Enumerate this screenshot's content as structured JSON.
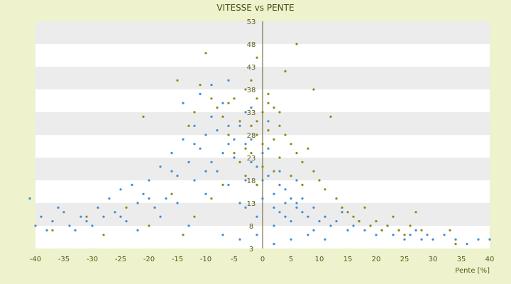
{
  "chart_data": {
    "type": "scatter",
    "title": "VITESSE vs PENTE",
    "xlabel": "Pente [%]",
    "ylabel": "",
    "xlim": [
      -40,
      40
    ],
    "ylim": [
      3,
      53
    ],
    "xticks": [
      -40,
      -35,
      -30,
      -25,
      -20,
      -15,
      -10,
      -5,
      0,
      5,
      10,
      15,
      20,
      25,
      30,
      35,
      40
    ],
    "yticks": [
      3,
      8,
      13,
      18,
      23,
      28,
      33,
      38,
      43,
      48,
      53
    ],
    "x_tick_labels": [
      "-40",
      "-35",
      "-30",
      "-25",
      "-20",
      "-15",
      "-10",
      "-5",
      "0",
      "5",
      "10",
      "15",
      "20",
      "25",
      "30",
      "35",
      "40"
    ],
    "y_tick_labels": [
      "3",
      "8",
      "13",
      "18",
      "23",
      "28",
      "33",
      "38",
      "43",
      "48",
      "53"
    ],
    "grid": "horizontal bands",
    "legend": "none",
    "series": [
      {
        "color": "#3c8dd6",
        "points": [
          [
            -41,
            14
          ],
          [
            -40,
            8
          ],
          [
            -39,
            10
          ],
          [
            -38,
            7
          ],
          [
            -37,
            9
          ],
          [
            -36,
            12
          ],
          [
            -35,
            11
          ],
          [
            -34,
            8
          ],
          [
            -33,
            7
          ],
          [
            -32,
            10
          ],
          [
            -31,
            9
          ],
          [
            -30,
            8
          ],
          [
            -29,
            12
          ],
          [
            -28,
            10
          ],
          [
            -27,
            14
          ],
          [
            -26,
            11
          ],
          [
            -25,
            16
          ],
          [
            -24,
            9
          ],
          [
            -23,
            17
          ],
          [
            -22,
            13
          ],
          [
            -21,
            15
          ],
          [
            -20,
            18
          ],
          [
            -19,
            12
          ],
          [
            -18,
            21
          ],
          [
            -17,
            14
          ],
          [
            -16,
            24
          ],
          [
            -15,
            19
          ],
          [
            -14,
            27
          ],
          [
            -13,
            22
          ],
          [
            -12,
            30
          ],
          [
            -11,
            25
          ],
          [
            -10,
            28
          ],
          [
            -9,
            32
          ],
          [
            -8,
            20
          ],
          [
            -7,
            35
          ],
          [
            -6,
            26
          ],
          [
            -5,
            23
          ],
          [
            -4,
            30
          ],
          [
            -3,
            18
          ],
          [
            -2,
            27
          ],
          [
            -1,
            21
          ],
          [
            0,
            24
          ],
          [
            1,
            19
          ],
          [
            2,
            15
          ],
          [
            3,
            17
          ],
          [
            4,
            13
          ],
          [
            5,
            14
          ],
          [
            6,
            12
          ],
          [
            7,
            11
          ],
          [
            8,
            10
          ],
          [
            9,
            12
          ],
          [
            10,
            9
          ],
          [
            11,
            10
          ],
          [
            12,
            8
          ],
          [
            13,
            9
          ],
          [
            14,
            11
          ],
          [
            15,
            7
          ],
          [
            16,
            8
          ],
          [
            17,
            9
          ],
          [
            18,
            7
          ],
          [
            19,
            8
          ],
          [
            20,
            6
          ],
          [
            21,
            7
          ],
          [
            22,
            8
          ],
          [
            23,
            6
          ],
          [
            24,
            7
          ],
          [
            25,
            5
          ],
          [
            26,
            6
          ],
          [
            27,
            7
          ],
          [
            28,
            5
          ],
          [
            29,
            6
          ],
          [
            30,
            5
          ],
          [
            32,
            6
          ],
          [
            34,
            5
          ],
          [
            36,
            4
          ],
          [
            38,
            5
          ],
          [
            40,
            5
          ],
          [
            -9,
            39
          ],
          [
            -14,
            35
          ],
          [
            -6,
            40
          ],
          [
            -11,
            37
          ],
          [
            -3,
            33
          ],
          [
            -8,
            29
          ],
          [
            -12,
            26
          ],
          [
            -16,
            20
          ],
          [
            -20,
            14
          ],
          [
            -25,
            10
          ],
          [
            -5,
            27
          ],
          [
            -2,
            22
          ],
          [
            1,
            25
          ],
          [
            3,
            20
          ],
          [
            2,
            12
          ],
          [
            4,
            16
          ],
          [
            6,
            18
          ],
          [
            5,
            9
          ],
          [
            7,
            14
          ],
          [
            9,
            7
          ],
          [
            -18,
            10
          ],
          [
            -22,
            7
          ],
          [
            -13,
            8
          ],
          [
            -7,
            6
          ],
          [
            -4,
            5
          ],
          [
            -1,
            6
          ],
          [
            2,
            4
          ],
          [
            5,
            5
          ],
          [
            8,
            6
          ],
          [
            11,
            5
          ],
          [
            -10,
            15
          ],
          [
            -6,
            17
          ],
          [
            -3,
            12
          ],
          [
            0,
            14
          ],
          [
            3,
            11
          ],
          [
            6,
            13
          ],
          [
            4,
            10
          ],
          [
            2,
            8
          ],
          [
            -1,
            10
          ],
          [
            -4,
            13
          ],
          [
            -15,
            13
          ],
          [
            -12,
            18
          ],
          [
            -9,
            22
          ],
          [
            -6,
            30
          ],
          [
            -3,
            26
          ],
          [
            0,
            18
          ],
          [
            1,
            31
          ],
          [
            -2,
            34
          ],
          [
            -7,
            24
          ],
          [
            -10,
            20
          ]
        ]
      },
      {
        "color": "#8a8a10",
        "points": [
          [
            -10,
            46
          ],
          [
            6,
            48
          ],
          [
            -1,
            45
          ],
          [
            4,
            42
          ],
          [
            9,
            38
          ],
          [
            -5,
            36
          ],
          [
            -3,
            38
          ],
          [
            -2,
            40
          ],
          [
            -1,
            36
          ],
          [
            0,
            33
          ],
          [
            1,
            37
          ],
          [
            2,
            34
          ],
          [
            3,
            30
          ],
          [
            4,
            28
          ],
          [
            5,
            26
          ],
          [
            6,
            24
          ],
          [
            7,
            22
          ],
          [
            8,
            25
          ],
          [
            9,
            20
          ],
          [
            10,
            18
          ],
          [
            11,
            16
          ],
          [
            12,
            32
          ],
          [
            13,
            14
          ],
          [
            14,
            12
          ],
          [
            15,
            11
          ],
          [
            16,
            10
          ],
          [
            17,
            9
          ],
          [
            18,
            12
          ],
          [
            19,
            8
          ],
          [
            20,
            9
          ],
          [
            21,
            7
          ],
          [
            22,
            8
          ],
          [
            23,
            10
          ],
          [
            24,
            7
          ],
          [
            25,
            6
          ],
          [
            26,
            8
          ],
          [
            27,
            11
          ],
          [
            28,
            7
          ],
          [
            33,
            7
          ],
          [
            34,
            4
          ],
          [
            -2,
            30
          ],
          [
            -1,
            28
          ],
          [
            0,
            26
          ],
          [
            1,
            29
          ],
          [
            2,
            27
          ],
          [
            -3,
            25
          ],
          [
            -4,
            22
          ],
          [
            -5,
            24
          ],
          [
            -6,
            28
          ],
          [
            -7,
            32
          ],
          [
            -8,
            34
          ],
          [
            -9,
            36
          ],
          [
            -11,
            39
          ],
          [
            -12,
            33
          ],
          [
            -13,
            30
          ],
          [
            -15,
            40
          ],
          [
            -21,
            32
          ],
          [
            -3,
            19
          ],
          [
            -1,
            17
          ],
          [
            2,
            20
          ],
          [
            3,
            23
          ],
          [
            5,
            19
          ],
          [
            7,
            17
          ],
          [
            0,
            21
          ],
          [
            -2,
            24
          ],
          [
            -4,
            31
          ],
          [
            1,
            35
          ],
          [
            3,
            33
          ],
          [
            -6,
            35
          ],
          [
            -1,
            31
          ],
          [
            -37,
            7
          ],
          [
            -31,
            10
          ],
          [
            -28,
            6
          ],
          [
            -24,
            12
          ],
          [
            -20,
            8
          ],
          [
            -16,
            15
          ],
          [
            -14,
            6
          ],
          [
            -12,
            10
          ],
          [
            -9,
            14
          ],
          [
            -7,
            17
          ]
        ]
      }
    ]
  }
}
